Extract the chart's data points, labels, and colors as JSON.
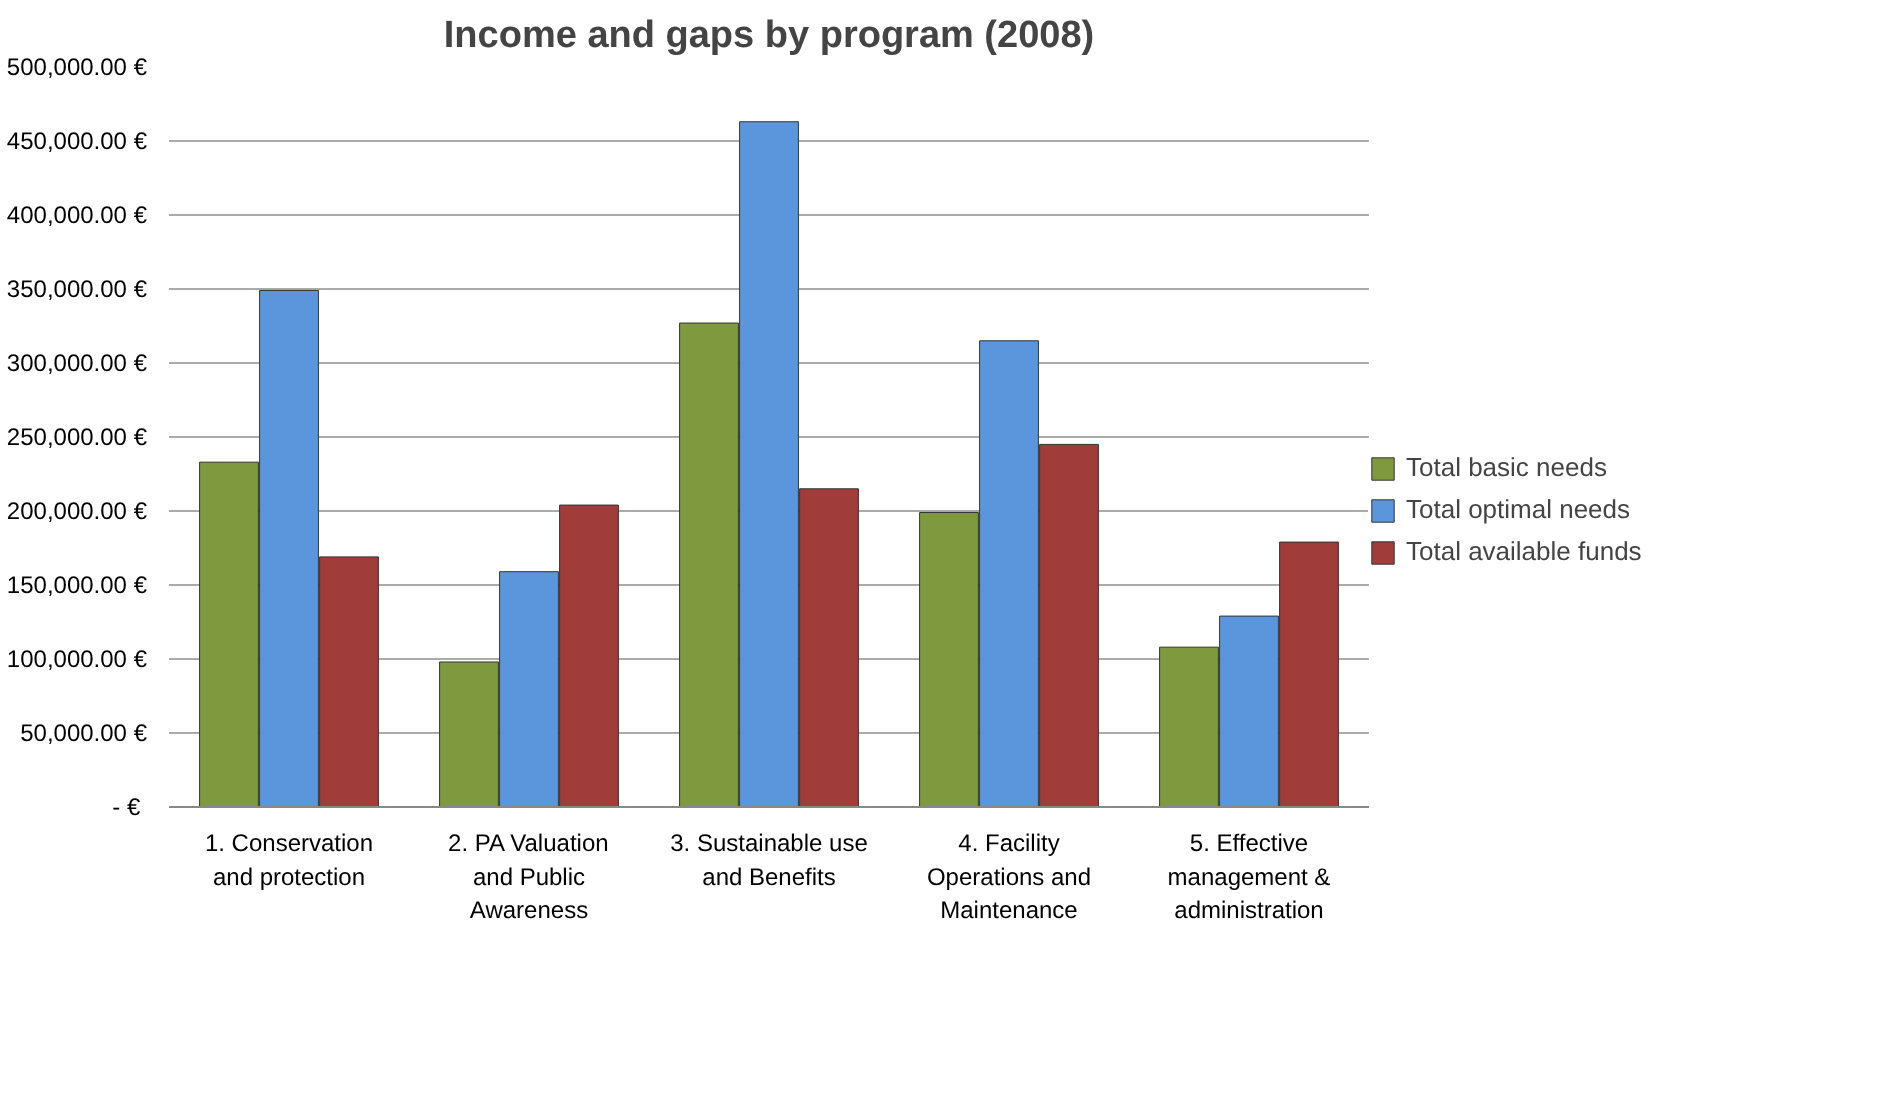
{
  "chart_data": {
    "type": "bar",
    "title": "Income and gaps by program (2008)",
    "categories": [
      "1. Conservation and protection",
      "2. PA Valuation and Public Awareness",
      "3. Sustainable use and Benefits",
      "4. Facility Operations and Maintenance",
      "5. Effective management & administration"
    ],
    "series": [
      {
        "name": "Total basic needs",
        "color": "#7f9a3e",
        "values": [
          233000,
          98000,
          327000,
          199000,
          108000
        ]
      },
      {
        "name": "Total optimal needs",
        "color": "#5b96dd",
        "values": [
          349000,
          159000,
          463000,
          315000,
          129000
        ]
      },
      {
        "name": "Total available funds",
        "color": "#a03c3a",
        "values": [
          169000,
          204000,
          215000,
          245000,
          179000
        ]
      }
    ],
    "ylim": [
      0,
      500000
    ],
    "yticks": [
      {
        "value": 0,
        "label": "-  €"
      },
      {
        "value": 50000,
        "label": "50,000.00 €"
      },
      {
        "value": 100000,
        "label": "100,000.00 €"
      },
      {
        "value": 150000,
        "label": "150,000.00 €"
      },
      {
        "value": 200000,
        "label": "200,000.00 €"
      },
      {
        "value": 250000,
        "label": "250,000.00 €"
      },
      {
        "value": 300000,
        "label": "300,000.00 €"
      },
      {
        "value": 350000,
        "label": "350,000.00 €"
      },
      {
        "value": 400000,
        "label": "400,000.00 €"
      },
      {
        "value": 450000,
        "label": "450,000.00 €"
      },
      {
        "value": 500000,
        "label": "500,000.00 €"
      }
    ],
    "grid": "y",
    "legend": "right"
  }
}
